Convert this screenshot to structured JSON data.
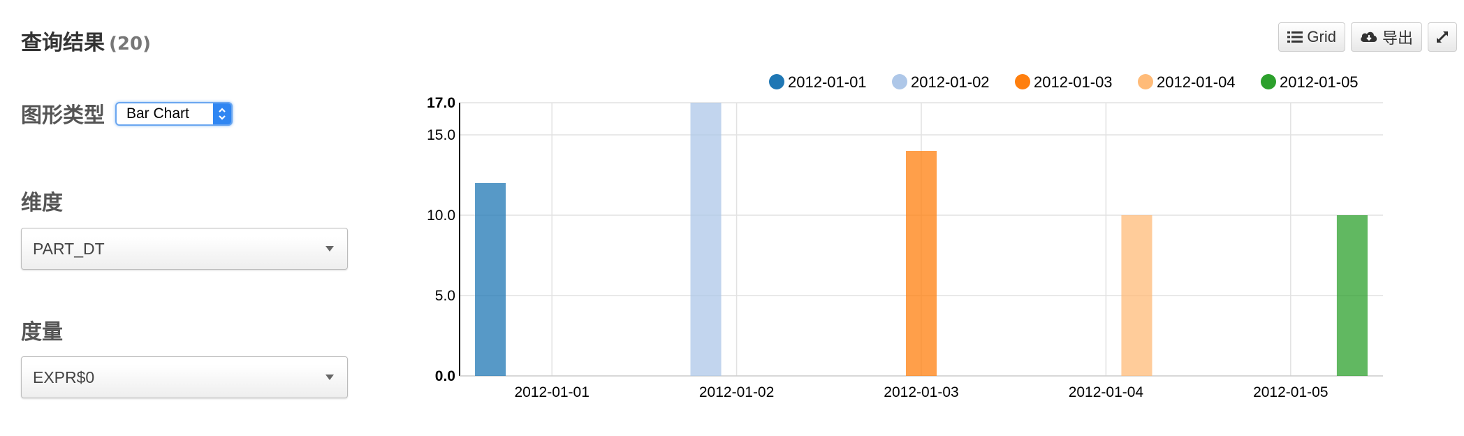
{
  "header": {
    "title": "查询结果",
    "count": "(20)"
  },
  "toolbar": {
    "grid_label": "Grid",
    "export_label": "导出"
  },
  "controls": {
    "chart_type_label": "图形类型",
    "chart_type_value": "Bar Chart",
    "dimension_label": "维度",
    "dimension_value": "PART_DT",
    "measure_label": "度量",
    "measure_value": "EXPR$0"
  },
  "colors": {
    "accent": "#2f86f2"
  },
  "chart_data": {
    "type": "bar",
    "categories": [
      "2012-01-01",
      "2012-01-02",
      "2012-01-03",
      "2012-01-04",
      "2012-01-05"
    ],
    "series": [
      {
        "name": "2012-01-01",
        "color": "#1f77b4",
        "values": [
          12,
          0,
          0,
          0,
          0
        ]
      },
      {
        "name": "2012-01-02",
        "color": "#aec7e8",
        "values": [
          0,
          17,
          0,
          0,
          0
        ]
      },
      {
        "name": "2012-01-03",
        "color": "#ff7f0e",
        "values": [
          0,
          0,
          14,
          0,
          0
        ]
      },
      {
        "name": "2012-01-04",
        "color": "#ffbb78",
        "values": [
          0,
          0,
          0,
          10,
          0
        ]
      },
      {
        "name": "2012-01-05",
        "color": "#2ca02c",
        "values": [
          0,
          0,
          0,
          0,
          10
        ]
      }
    ],
    "yticks": [
      "0.0",
      "5.0",
      "10.0",
      "15.0",
      "17.0"
    ],
    "ylim": [
      0,
      17
    ],
    "legend": "top",
    "grid": true
  }
}
